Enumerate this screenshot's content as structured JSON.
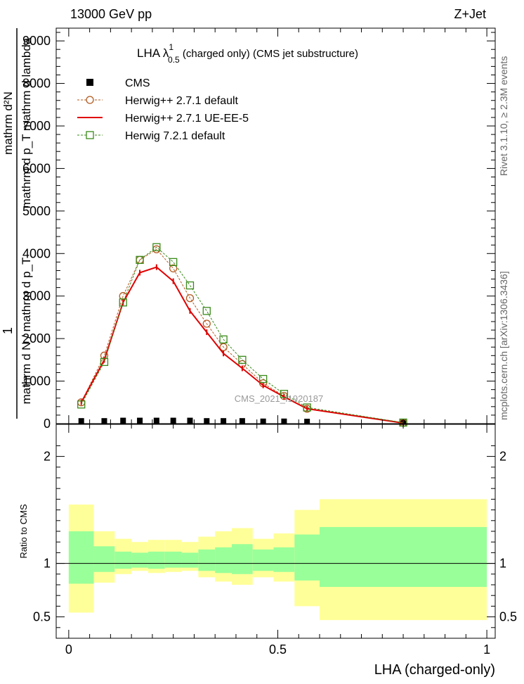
{
  "header": {
    "left": "13000 GeV pp",
    "right": "Z+Jet"
  },
  "side": {
    "rivet": "Rivet 3.1.10, ≥ 2.3M events",
    "mcplots": "mcplots.cern.ch [arXiv:1306.3436]"
  },
  "main": {
    "title": "LHA λ",
    "title_sup": "1",
    "title_sub": "0.5",
    "title_rest": " (charged only) (CMS jet substructure)",
    "ylabel_top": "mathrm d²N",
    "ylabel_top2": "mathrm d p_T mathrm d lambda",
    "ylabel_mid": "1",
    "ylabel_bottom": "mathrm d N / mathrm d p_T",
    "watermark": "CMS_2021_I1920187"
  },
  "ratio": {
    "ylabel": "Ratio to CMS"
  },
  "xaxis": {
    "label": "LHA (charged-only)"
  },
  "legend": [
    {
      "label": "CMS",
      "color": "#000000",
      "marker": "square-filled"
    },
    {
      "label": "Herwig++ 2.7.1 default",
      "color": "#b35a1f",
      "marker": "circle"
    },
    {
      "label": "Herwig++ 2.7.1 UE-EE-5",
      "color": "#e00000",
      "marker": "line"
    },
    {
      "label": "Herwig 7.2.1 default",
      "color": "#3a8a1a",
      "marker": "square"
    }
  ],
  "chart_data": {
    "type": "line",
    "x": [
      0.03,
      0.085,
      0.13,
      0.17,
      0.21,
      0.25,
      0.29,
      0.33,
      0.37,
      0.415,
      0.465,
      0.515,
      0.57,
      0.8
    ],
    "bins": [
      [
        0,
        0.06
      ],
      [
        0.06,
        0.11
      ],
      [
        0.11,
        0.15
      ],
      [
        0.15,
        0.19
      ],
      [
        0.19,
        0.23
      ],
      [
        0.23,
        0.27
      ],
      [
        0.27,
        0.31
      ],
      [
        0.31,
        0.35
      ],
      [
        0.35,
        0.39
      ],
      [
        0.39,
        0.44
      ],
      [
        0.44,
        0.49
      ],
      [
        0.49,
        0.54
      ],
      [
        0.54,
        0.6
      ],
      [
        0.6,
        1.0
      ]
    ],
    "xlim": [
      -0.03,
      1.02
    ],
    "ylim": [
      0,
      9300
    ],
    "yticks": [
      0,
      1000,
      2000,
      3000,
      4000,
      5000,
      6000,
      7000,
      8000,
      9000
    ],
    "ytick_labels": [
      "0",
      "1000",
      "2000",
      "3000",
      "4000",
      "5000",
      "6000",
      "7000",
      "8000",
      "9000"
    ],
    "xticks": [
      0,
      0.5,
      1
    ],
    "xtick_labels": [
      "0",
      "0.5",
      "1"
    ],
    "series": [
      {
        "name": "CMS",
        "values": [
          30,
          30,
          40,
          40,
          40,
          40,
          40,
          30,
          30,
          30,
          20,
          20,
          15,
          5
        ]
      },
      {
        "name": "Herwig++ 2.7.1 default",
        "values": [
          500,
          1600,
          3000,
          3850,
          4100,
          3650,
          2950,
          2350,
          1800,
          1400,
          950,
          650,
          350,
          20
        ]
      },
      {
        "name": "Herwig++ 2.7.1 UE-EE-5",
        "values": [
          500,
          1500,
          2850,
          3550,
          3680,
          3350,
          2650,
          2150,
          1650,
          1300,
          900,
          630,
          350,
          15
        ]
      },
      {
        "name": "Herwig 7.2.1 default",
        "values": [
          450,
          1450,
          2850,
          3850,
          4150,
          3800,
          3250,
          2650,
          1980,
          1500,
          1050,
          700,
          380,
          25
        ]
      }
    ],
    "ratio": {
      "ylim": [
        0.3,
        2.3
      ],
      "yticks": [
        0.5,
        1,
        2
      ],
      "ytick_labels": [
        "0.5",
        "1",
        "2"
      ],
      "yellow_low": [
        0.54,
        0.82,
        0.9,
        0.93,
        0.91,
        0.92,
        0.93,
        0.87,
        0.83,
        0.8,
        0.87,
        0.83,
        0.6,
        0.47
      ],
      "yellow_high": [
        1.55,
        1.3,
        1.23,
        1.2,
        1.22,
        1.22,
        1.2,
        1.25,
        1.3,
        1.33,
        1.23,
        1.28,
        1.5,
        1.6
      ],
      "green_low": [
        0.81,
        0.92,
        0.95,
        0.96,
        0.95,
        0.96,
        0.96,
        0.93,
        0.91,
        0.9,
        0.93,
        0.92,
        0.84,
        0.78
      ],
      "green_high": [
        1.3,
        1.16,
        1.11,
        1.1,
        1.11,
        1.11,
        1.1,
        1.13,
        1.15,
        1.18,
        1.13,
        1.15,
        1.27,
        1.34
      ]
    }
  }
}
